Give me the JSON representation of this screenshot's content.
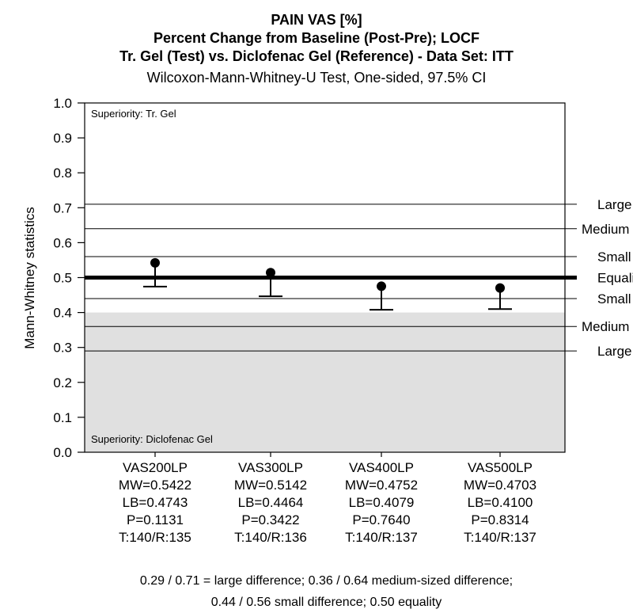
{
  "chart_data": {
    "type": "scatter",
    "title_lines": [
      "PAIN VAS [%]",
      "Percent Change from Baseline (Post-Pre); LOCF",
      "Tr. Gel (Test) vs. Diclofenac Gel (Reference) - Data Set: ITT"
    ],
    "subtitle": "Wilcoxon-Mann-Whitney-U Test, One-sided, 97.5% CI",
    "ylabel": "Mann-Whitney statistics",
    "xlabel": "",
    "ylim": [
      0.0,
      1.0
    ],
    "y_ticks": [
      "0.0",
      "0.1",
      "0.2",
      "0.3",
      "0.4",
      "0.5",
      "0.6",
      "0.7",
      "0.8",
      "0.9",
      "1.0"
    ],
    "shaded_region": {
      "from": 0.0,
      "to": 0.4,
      "color": "#e0e0e0"
    },
    "region_labels": {
      "top": "Superiority: Tr. Gel",
      "bottom": "Superiority: Diclofenac Gel"
    },
    "reference_lines": [
      {
        "y": 0.71,
        "label": "Large",
        "bold": false
      },
      {
        "y": 0.64,
        "label": "Medium",
        "bold": false
      },
      {
        "y": 0.56,
        "label": "Small",
        "bold": false
      },
      {
        "y": 0.5,
        "label": "Equality",
        "bold": true
      },
      {
        "y": 0.44,
        "label": "Small",
        "bold": false
      },
      {
        "y": 0.36,
        "label": "Medium",
        "bold": false
      },
      {
        "y": 0.29,
        "label": "Large",
        "bold": false
      }
    ],
    "categories": [
      {
        "name": "VAS200LP",
        "mw": 0.5422,
        "lb": 0.4743,
        "mw_text": "MW=0.5422",
        "lb_text": "LB=0.4743",
        "p_text": "P=0.1131",
        "n_text": "T:140/R:135"
      },
      {
        "name": "VAS300LP",
        "mw": 0.5142,
        "lb": 0.4464,
        "mw_text": "MW=0.5142",
        "lb_text": "LB=0.4464",
        "p_text": "P=0.3422",
        "n_text": "T:140/R:136"
      },
      {
        "name": "VAS400LP",
        "mw": 0.4752,
        "lb": 0.4079,
        "mw_text": "MW=0.4752",
        "lb_text": "LB=0.4079",
        "p_text": "P=0.7640",
        "n_text": "T:140/R:137"
      },
      {
        "name": "VAS500LP",
        "mw": 0.4703,
        "lb": 0.41,
        "mw_text": "MW=0.4703",
        "lb_text": "LB=0.4100",
        "p_text": "P=0.8314",
        "n_text": "T:140/R:137"
      }
    ],
    "grid": false,
    "footnote_lines": [
      "0.29 / 0.71 = large difference; 0.36 / 0.64 medium-sized difference;",
      "0.44 / 0.56 small difference; 0.50 equality"
    ]
  }
}
